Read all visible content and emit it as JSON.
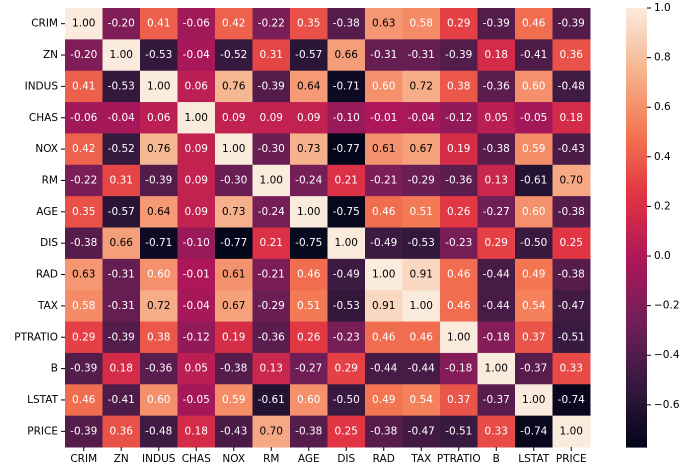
{
  "chart_data": {
    "type": "heatmap",
    "x_categories": [
      "CRIM",
      "ZN",
      "INDUS",
      "CHAS",
      "NOX",
      "RM",
      "AGE",
      "DIS",
      "RAD",
      "TAX",
      "PTRATIO",
      "B",
      "LSTAT",
      "PRICE"
    ],
    "y_categories": [
      "CRIM",
      "ZN",
      "INDUS",
      "CHAS",
      "NOX",
      "RM",
      "AGE",
      "DIS",
      "RAD",
      "TAX",
      "PTRATIO",
      "B",
      "LSTAT",
      "PRICE"
    ],
    "values": [
      [
        1.0,
        -0.2,
        0.41,
        -0.06,
        0.42,
        -0.22,
        0.35,
        -0.38,
        0.63,
        0.58,
        0.29,
        -0.39,
        0.46,
        -0.39
      ],
      [
        -0.2,
        1.0,
        -0.53,
        -0.04,
        -0.52,
        0.31,
        -0.57,
        0.66,
        -0.31,
        -0.31,
        -0.39,
        0.18,
        -0.41,
        0.36
      ],
      [
        0.41,
        -0.53,
        1.0,
        0.06,
        0.76,
        -0.39,
        0.64,
        -0.71,
        0.6,
        0.72,
        0.38,
        -0.36,
        0.6,
        -0.48
      ],
      [
        -0.06,
        -0.04,
        0.06,
        1.0,
        0.09,
        0.09,
        0.09,
        -0.1,
        -0.01,
        -0.04,
        -0.12,
        0.05,
        -0.05,
        0.18
      ],
      [
        0.42,
        -0.52,
        0.76,
        0.09,
        1.0,
        -0.3,
        0.73,
        -0.77,
        0.61,
        0.67,
        0.19,
        -0.38,
        0.59,
        -0.43
      ],
      [
        -0.22,
        0.31,
        -0.39,
        0.09,
        -0.3,
        1.0,
        -0.24,
        0.21,
        -0.21,
        -0.29,
        -0.36,
        0.13,
        -0.61,
        0.7
      ],
      [
        0.35,
        -0.57,
        0.64,
        0.09,
        0.73,
        -0.24,
        1.0,
        -0.75,
        0.46,
        0.51,
        0.26,
        -0.27,
        0.6,
        -0.38
      ],
      [
        -0.38,
        0.66,
        -0.71,
        -0.1,
        -0.77,
        0.21,
        -0.75,
        1.0,
        -0.49,
        -0.53,
        -0.23,
        0.29,
        -0.5,
        0.25
      ],
      [
        0.63,
        -0.31,
        0.6,
        -0.01,
        0.61,
        -0.21,
        0.46,
        -0.49,
        1.0,
        0.91,
        0.46,
        -0.44,
        0.49,
        -0.38
      ],
      [
        0.58,
        -0.31,
        0.72,
        -0.04,
        0.67,
        -0.29,
        0.51,
        -0.53,
        0.91,
        1.0,
        0.46,
        -0.44,
        0.54,
        -0.47
      ],
      [
        0.29,
        -0.39,
        0.38,
        -0.12,
        0.19,
        -0.36,
        0.26,
        -0.23,
        0.46,
        0.46,
        1.0,
        -0.18,
        0.37,
        -0.51
      ],
      [
        -0.39,
        0.18,
        -0.36,
        0.05,
        -0.38,
        0.13,
        -0.27,
        0.29,
        -0.44,
        -0.44,
        -0.18,
        1.0,
        -0.37,
        0.33
      ],
      [
        0.46,
        -0.41,
        0.6,
        -0.05,
        0.59,
        -0.61,
        0.6,
        -0.5,
        0.49,
        0.54,
        0.37,
        -0.37,
        1.0,
        -0.74
      ],
      [
        -0.39,
        0.36,
        -0.48,
        0.18,
        -0.43,
        0.7,
        -0.38,
        0.25,
        -0.38,
        -0.47,
        -0.51,
        0.33,
        -0.74,
        1.0
      ]
    ],
    "value_labels": [
      [
        "1.00",
        "-0.20",
        "0.41",
        "-0.06",
        "0.42",
        "-0.22",
        "0.35",
        "-0.38",
        "0.63",
        "0.58",
        "0.29",
        "-0.39",
        "0.46",
        "-0.39"
      ],
      [
        "-0.20",
        "1.00",
        "-0.53",
        "-0.04",
        "-0.52",
        "0.31",
        "-0.57",
        "0.66",
        "-0.31",
        "-0.31",
        "-0.39",
        "0.18",
        "-0.41",
        "0.36"
      ],
      [
        "0.41",
        "-0.53",
        "1.00",
        "0.06",
        "0.76",
        "-0.39",
        "0.64",
        "-0.71",
        "0.60",
        "0.72",
        "0.38",
        "-0.36",
        "0.60",
        "-0.48"
      ],
      [
        "-0.06",
        "-0.04",
        "0.06",
        "1.00",
        "0.09",
        "0.09",
        "0.09",
        "-0.10",
        "-0.01",
        "-0.04",
        "-0.12",
        "0.05",
        "-0.05",
        "0.18"
      ],
      [
        "0.42",
        "-0.52",
        "0.76",
        "0.09",
        "1.00",
        "-0.30",
        "0.73",
        "-0.77",
        "0.61",
        "0.67",
        "0.19",
        "-0.38",
        "0.59",
        "-0.43"
      ],
      [
        "-0.22",
        "0.31",
        "-0.39",
        "0.09",
        "-0.30",
        "1.00",
        "-0.24",
        "0.21",
        "-0.21",
        "-0.29",
        "-0.36",
        "0.13",
        "-0.61",
        "0.70"
      ],
      [
        "0.35",
        "-0.57",
        "0.64",
        "0.09",
        "0.73",
        "-0.24",
        "1.00",
        "-0.75",
        "0.46",
        "0.51",
        "0.26",
        "-0.27",
        "0.60",
        "-0.38"
      ],
      [
        "-0.38",
        "0.66",
        "-0.71",
        "-0.10",
        "-0.77",
        "0.21",
        "-0.75",
        "1.00",
        "-0.49",
        "-0.53",
        "-0.23",
        "0.29",
        "-0.50",
        "0.25"
      ],
      [
        "0.63",
        "-0.31",
        "0.60",
        "-0.01",
        "0.61",
        "-0.21",
        "0.46",
        "-0.49",
        "1.00",
        "0.91",
        "0.46",
        "-0.44",
        "0.49",
        "-0.38"
      ],
      [
        "0.58",
        "-0.31",
        "0.72",
        "-0.04",
        "0.67",
        "-0.29",
        "0.51",
        "-0.53",
        "0.91",
        "1.00",
        "0.46",
        "-0.44",
        "0.54",
        "-0.47"
      ],
      [
        "0.29",
        "-0.39",
        "0.38",
        "-0.12",
        "0.19",
        "-0.36",
        "0.26",
        "-0.23",
        "0.46",
        "0.46",
        "1.00",
        "-0.18",
        "0.37",
        "-0.51"
      ],
      [
        "-0.39",
        "0.18",
        "-0.36",
        "0.05",
        "-0.38",
        "0.13",
        "-0.27",
        "0.29",
        "-0.44",
        "-0.44",
        "-0.18",
        "1.00",
        "-0.37",
        "0.33"
      ],
      [
        "0.46",
        "-0.41",
        "0.60",
        "-0.05",
        "0.59",
        "-0.61",
        "0.60",
        "-0.50",
        "0.49",
        "0.54",
        "0.37",
        "-0.37",
        "1.00",
        "-0.74"
      ],
      [
        "-0.39",
        "0.36",
        "-0.48",
        "0.18",
        "-0.43",
        "0.70",
        "-0.38",
        "0.25",
        "-0.38",
        "-0.47",
        "-0.51",
        "0.33",
        "-0.74",
        "1.00"
      ]
    ],
    "colormap": [
      "#03051a",
      "#36193e",
      "#701f57",
      "#ad1759",
      "#e13342",
      "#f37651",
      "#f6b48f",
      "#faebdd"
    ],
    "clim": [
      -0.77,
      1
    ],
    "cticks": [
      {
        "value": 1.0,
        "label": "1.0"
      },
      {
        "value": 0.8,
        "label": "0.8"
      },
      {
        "value": 0.6,
        "label": "0.6"
      },
      {
        "value": 0.4,
        "label": "0.4"
      },
      {
        "value": 0.2,
        "label": "0.2"
      },
      {
        "value": 0.0,
        "label": "0.0"
      },
      {
        "value": -0.2,
        "label": "−0.2"
      },
      {
        "value": -0.4,
        "label": "−0.4"
      },
      {
        "value": -0.6,
        "label": "−0.6"
      }
    ]
  }
}
